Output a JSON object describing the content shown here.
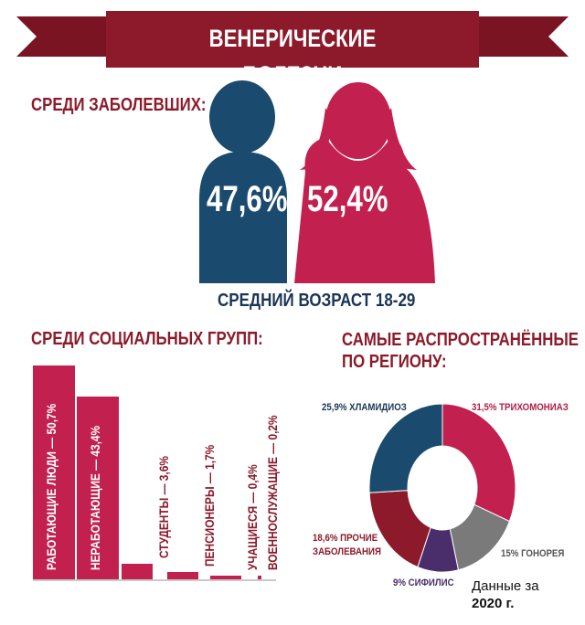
{
  "title": "ВЕНЕРИЧЕСКИЕ БОЛЕЗНИ",
  "colors": {
    "banner": "#8c1a2a",
    "male": "#1a4a6e",
    "female": "#c2214f"
  },
  "gender": {
    "heading": "СРЕДИ ЗАБОЛЕВШИХ:",
    "male_pct": "47,6%",
    "female_pct": "52,4%",
    "average_age": "СРЕДНИЙ ВОЗРАСТ 18-29",
    "icons": [
      "male-figure-icon",
      "female-figure-icon"
    ]
  },
  "social": {
    "heading": "СРЕДИ СОЦИАЛЬНЫХ ГРУПП:",
    "groups": [
      {
        "label": "РАБОТАЮЩИЕ ЛЮДИ — 50,7%",
        "value": 50.7
      },
      {
        "label": "НЕРАБОТАЮЩИЕ — 43,4%",
        "value": 43.4
      },
      {
        "label": "СТУДЕНТЫ — 3,6%",
        "value": 3.6
      },
      {
        "label": "ПЕНСИОНЕРЫ — 1,7%",
        "value": 1.7
      },
      {
        "label": "УЧАЩИЕСЯ — 0,4%",
        "value": 0.4
      },
      {
        "label": "ВОЕННОСЛУЖАЩИЕ — 0,2%",
        "value": 0.2
      }
    ]
  },
  "regional": {
    "heading_line1": "САМЫЕ РАСПРОСТРАНЁННЫЕ",
    "heading_line2": "ПО РЕГИОНУ:",
    "slices": [
      {
        "label": "31,5% ТРИХОМОНИАЗ",
        "value": 31.5,
        "color": "#c2214f"
      },
      {
        "label": "15% ГОНОРЕЯ",
        "value": 15,
        "color": "#7a7a7a"
      },
      {
        "label": "9% СИФИЛИС",
        "value": 9,
        "color": "#4a2d6b"
      },
      {
        "label_line1": "18,6% ПРОЧИЕ",
        "label_line2": "ЗАБОЛЕВАНИЯ",
        "value": 18.6,
        "color": "#8c1a2a"
      },
      {
        "label": "25,9% ХЛАМИДИОЗ",
        "value": 25.9,
        "color": "#1a4a6e"
      }
    ]
  },
  "footnote": {
    "line1": "Данные за",
    "line2": "2020 г."
  }
}
